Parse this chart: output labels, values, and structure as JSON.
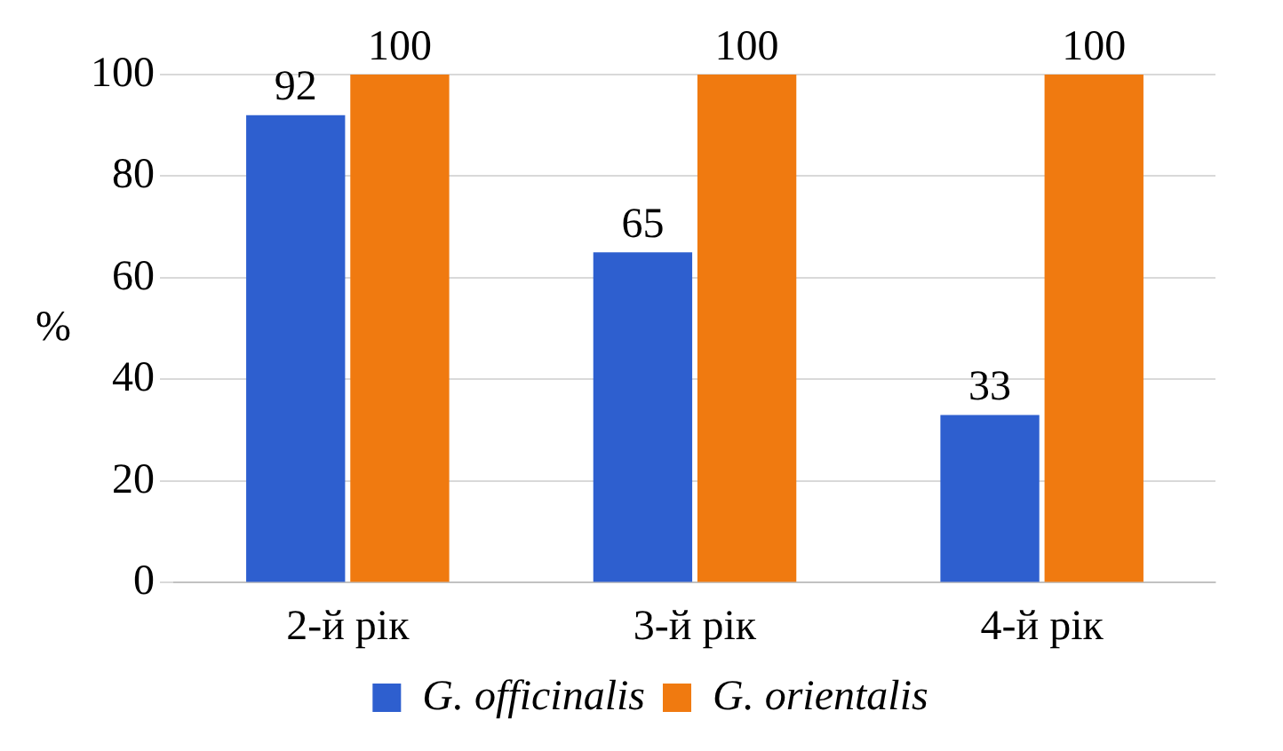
{
  "chart_data": {
    "type": "bar",
    "ylabel": "%",
    "categories": [
      "2-й рік",
      "3-й рік",
      "4-й рік"
    ],
    "series": [
      {
        "name": "G. officinalis",
        "color": "#2e5fcf",
        "values": [
          92,
          65,
          33
        ]
      },
      {
        "name": "G. orientalis",
        "color": "#f07a10",
        "values": [
          100,
          100,
          100
        ]
      }
    ],
    "ylim": [
      0,
      100
    ],
    "yticks": [
      0,
      20,
      40,
      60,
      80,
      100
    ],
    "grid": "y",
    "legend": "bottom",
    "data_labels": true
  }
}
